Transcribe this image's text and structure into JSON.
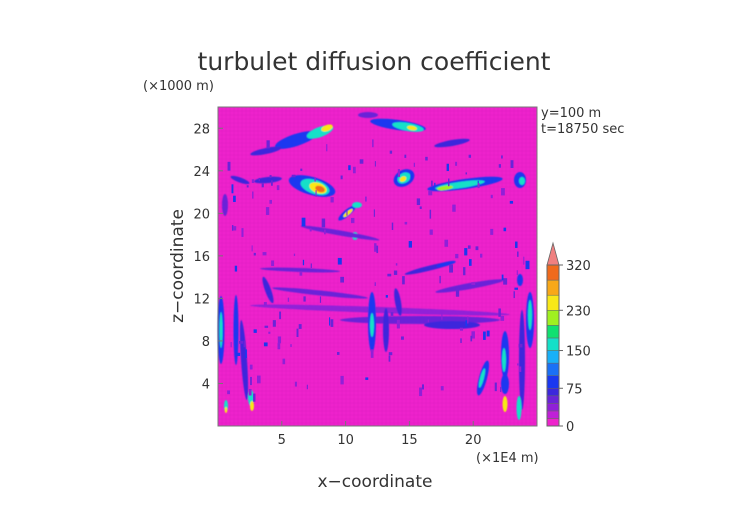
{
  "chart_data": {
    "type": "heatmap",
    "title": "turbulet diffusion coefficient",
    "x_multiplier_label": "(×1E4 m)",
    "z_multiplier_label": "(×1000 m)",
    "xlabel": "x−coordinate",
    "ylabel": "z−coordinate",
    "annotations": [
      "y=100 m",
      "t=18750 sec"
    ],
    "xlim": [
      0,
      25
    ],
    "ylim": [
      0,
      30
    ],
    "x_ticks": [
      5,
      10,
      15,
      20
    ],
    "y_ticks": [
      4,
      8,
      12,
      16,
      20,
      24,
      28
    ],
    "colorbar": {
      "tick_values": [
        0,
        75,
        150,
        230,
        320
      ],
      "tick_labels": [
        "0",
        "75",
        "150",
        "230",
        "320"
      ],
      "levels": [
        0,
        15,
        30,
        45,
        60,
        75,
        100,
        125,
        150,
        175,
        200,
        230,
        260,
        290,
        320
      ],
      "colors": [
        "#ee22cc",
        "#c020d8",
        "#9020d8",
        "#6a24d8",
        "#3c28dc",
        "#1a38f0",
        "#1a70f6",
        "#18b0f8",
        "#14e0c8",
        "#10e070",
        "#a0f020",
        "#f8e818",
        "#f8a818",
        "#f06a1c",
        "#e81c1c"
      ],
      "extend_color": "#f08080"
    },
    "background_value": 0,
    "features": [
      {
        "x": 6.4,
        "z": 28.0,
        "value": 150,
        "desc": "upper-left band"
      },
      {
        "x": 7.3,
        "z": 28.6,
        "value": 230,
        "desc": "upper-left band core"
      },
      {
        "x": 15.8,
        "z": 28.5,
        "value": 150,
        "desc": "upper-right band"
      },
      {
        "x": 7.9,
        "z": 23.2,
        "value": 250,
        "desc": "left blob"
      },
      {
        "x": 14.6,
        "z": 23.9,
        "value": 200,
        "desc": "centre-right blob"
      },
      {
        "x": 19.0,
        "z": 23.4,
        "value": 175,
        "desc": "right band"
      },
      {
        "x": 10.3,
        "z": 21.0,
        "value": 150,
        "desc": "small plume"
      },
      {
        "x": 1.4,
        "z": 22.0,
        "value": 90,
        "desc": "left edge streak"
      },
      {
        "x": 23.5,
        "z": 23.6,
        "value": 125,
        "desc": "right edge streak"
      },
      {
        "x": 12.4,
        "z": 10.0,
        "value": 120,
        "desc": "central column"
      },
      {
        "x": 0.5,
        "z": 7.5,
        "value": 150,
        "desc": "left vertical streak"
      },
      {
        "x": 2.1,
        "z": 4.0,
        "value": 150,
        "desc": "lower-left streak"
      },
      {
        "x": 21.8,
        "z": 3.5,
        "value": 150,
        "desc": "lower-right streak"
      },
      {
        "x": 23.7,
        "z": 6.0,
        "value": 125,
        "desc": "right vertical streak"
      },
      {
        "x": 16.5,
        "z": 16.5,
        "value": 90,
        "desc": "mid-right band"
      },
      {
        "x": 7.0,
        "z": 16.0,
        "value": 75,
        "desc": "mid-left band"
      },
      {
        "x": 9.0,
        "z": 10.6,
        "value": 75,
        "desc": "lower wave band"
      }
    ]
  }
}
